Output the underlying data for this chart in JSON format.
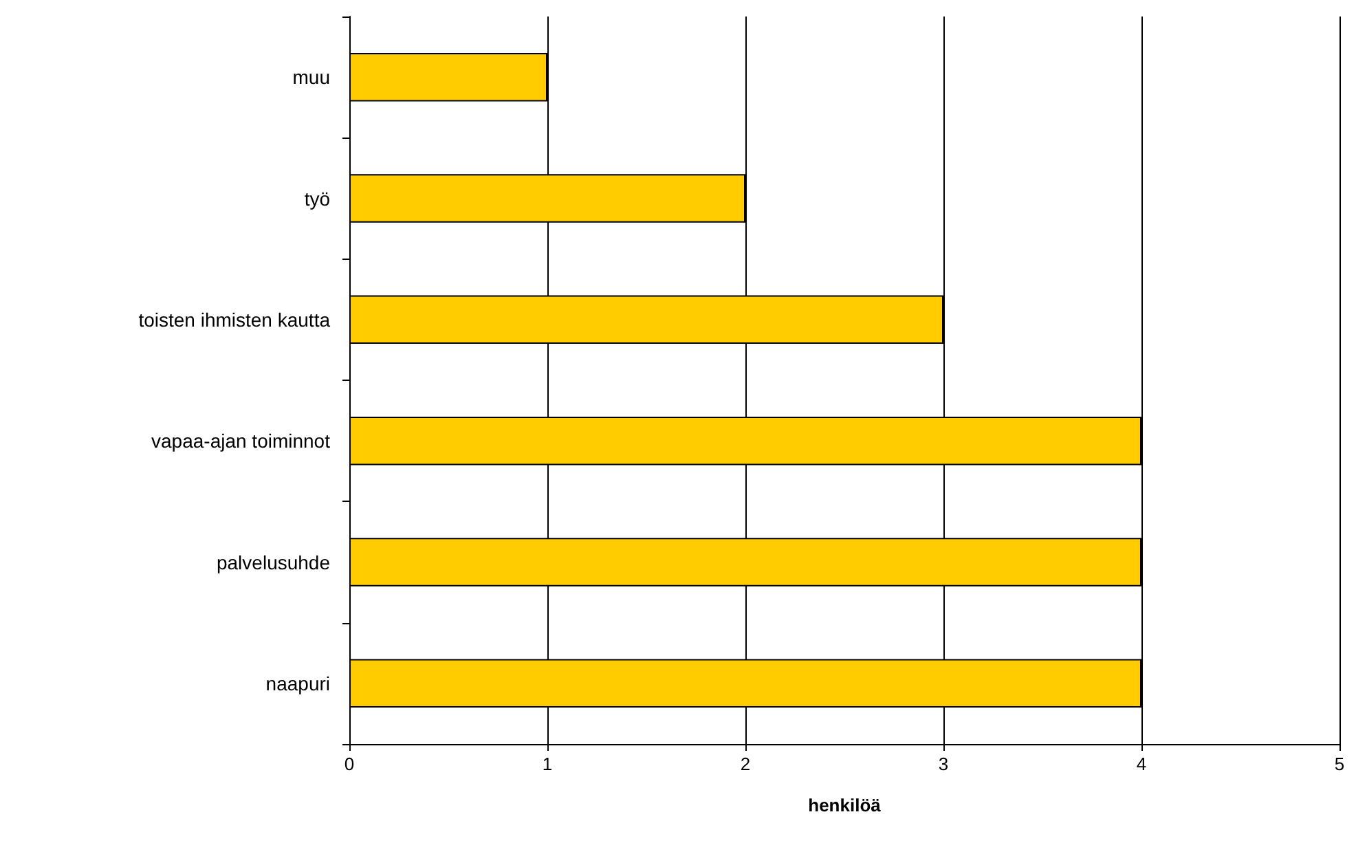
{
  "chart_data": {
    "type": "bar",
    "orientation": "horizontal",
    "categories": [
      "muu",
      "työ",
      "toisten ihmisten kautta",
      "vapaa-ajan toiminnot",
      "palvelusuhde",
      "naapuri"
    ],
    "values": [
      1,
      2,
      3,
      4,
      4,
      4
    ],
    "color": "#ffcc00",
    "xlim": [
      0,
      5
    ],
    "xticks": [
      0,
      1,
      2,
      3,
      4,
      5
    ],
    "xlabel": "henkilöä",
    "grid": "x"
  }
}
